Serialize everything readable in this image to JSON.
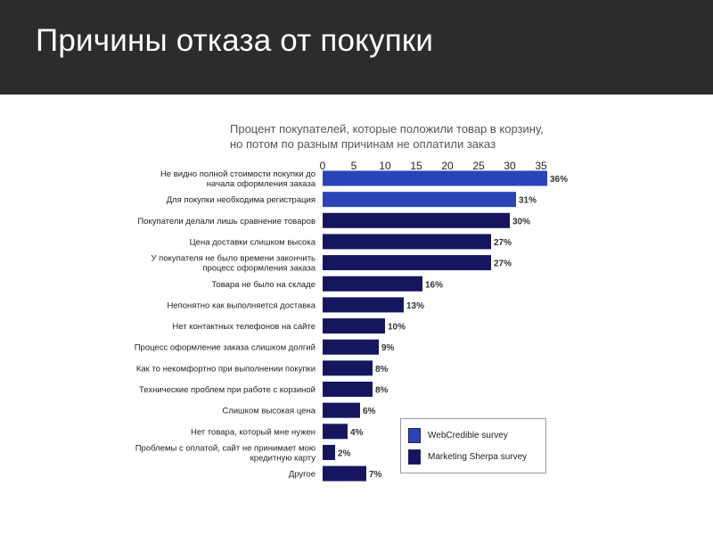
{
  "slide": {
    "title": "Причины отказа от покупки"
  },
  "chart_data": {
    "type": "bar",
    "orientation": "horizontal",
    "title": "Процент покупателей, которые положили товар в корзину, но потом по разным причинам не оплатили заказ",
    "title_lines": [
      "Процент покупателей, которые положили товар в корзину,",
      "но потом по разным причинам не оплатили заказ"
    ],
    "xlim": [
      0,
      35
    ],
    "xticks": [
      0,
      5,
      10,
      15,
      20,
      25,
      30,
      35
    ],
    "grid": false,
    "legend_position": "bottom-right",
    "categories": [
      [
        "Не видно полной стоимости покупки до",
        "начала оформления заказа"
      ],
      [
        "Для покупки необходима регистрация"
      ],
      [
        "Покупатели делали лишь сравнение товаров"
      ],
      [
        "Цена доставки слишком высока"
      ],
      [
        "У покупателя не было времени закончить",
        "процесс оформления заказа"
      ],
      [
        "Товара не было на складе"
      ],
      [
        "Непонятно как выполняется доставка"
      ],
      [
        "Нет контактных телефонов на сайте"
      ],
      [
        "Процесс оформление заказа слишком долгий"
      ],
      [
        "Как то некомфортно при выполнении покупки"
      ],
      [
        "Технические проблем при работе с корзиной"
      ],
      [
        "Слишком высокая цена"
      ],
      [
        "Нет товара, который мне нужен"
      ],
      [
        "Проблемы с оплатой, сайт не принимает мою",
        "кредитную карту"
      ],
      [
        "Другое"
      ]
    ],
    "values": [
      36,
      31,
      30,
      27,
      27,
      16,
      13,
      10,
      9,
      8,
      8,
      6,
      4,
      2,
      7
    ],
    "value_labels": [
      "36%",
      "31%",
      "30%",
      "27%",
      "27%",
      "16%",
      "13%",
      "10%",
      "9%",
      "8%",
      "8%",
      "6%",
      "4%",
      "2%",
      "7%"
    ],
    "bar_series": [
      "WebCredible survey",
      "WebCredible survey",
      "Marketing Sherpa survey",
      "Marketing Sherpa survey",
      "Marketing Sherpa survey",
      "Marketing Sherpa survey",
      "Marketing Sherpa survey",
      "Marketing Sherpa survey",
      "Marketing Sherpa survey",
      "Marketing Sherpa survey",
      "Marketing Sherpa survey",
      "Marketing Sherpa survey",
      "Marketing Sherpa survey",
      "Marketing Sherpa survey",
      "Marketing Sherpa survey"
    ],
    "series": [
      {
        "name": "WebCredible survey",
        "color": "#2a44b8"
      },
      {
        "name": "Marketing Sherpa survey",
        "color": "#161660"
      }
    ]
  }
}
